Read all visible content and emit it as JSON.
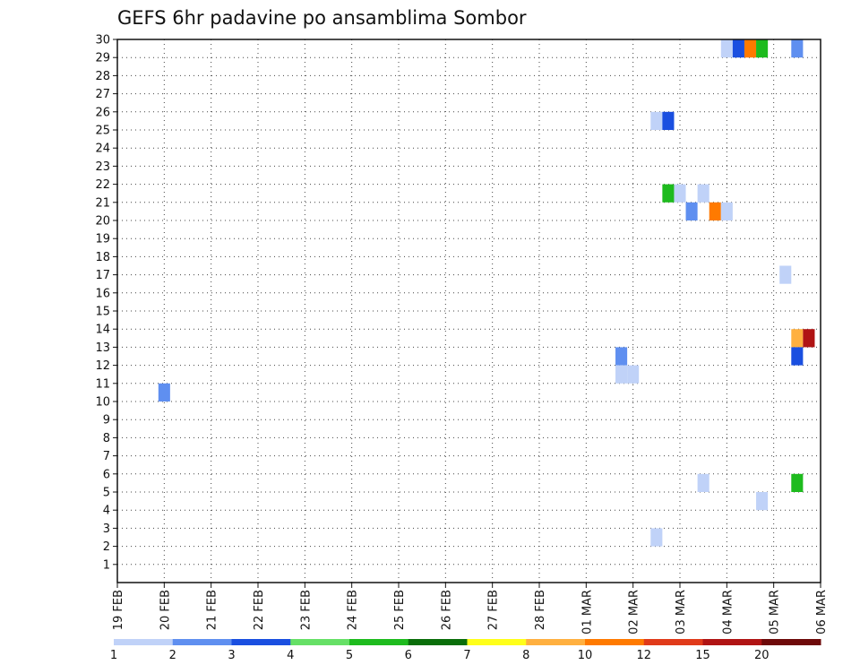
{
  "chart_data": {
    "type": "heatmap",
    "title": "GEFS 6hr padavine po ansamblima Sombor",
    "xlabel": "",
    "ylabel": "",
    "x_tick_labels": [
      "19 FEB",
      "20 FEB",
      "21 FEB",
      "22 FEB",
      "23 FEB",
      "24 FEB",
      "25 FEB",
      "26 FEB",
      "27 FEB",
      "28 FEB",
      "01 MAR",
      "02 MAR",
      "03 MAR",
      "04 MAR",
      "05 MAR",
      "06 MAR"
    ],
    "xlim_days": [
      0,
      15
    ],
    "ylim": [
      0,
      30
    ],
    "y_ticks": [
      1,
      2,
      3,
      4,
      5,
      6,
      7,
      8,
      9,
      10,
      11,
      12,
      13,
      14,
      15,
      16,
      17,
      18,
      19,
      20,
      21,
      22,
      23,
      24,
      25,
      26,
      27,
      28,
      29,
      30
    ],
    "grid": true,
    "colorbar": {
      "levels": [
        1,
        2,
        3,
        4,
        5,
        6,
        7,
        8,
        10,
        12,
        15,
        20
      ],
      "colors": [
        "#c0d2f8",
        "#5f8ff0",
        "#1a4fe0",
        "#66e066",
        "#1ebb1e",
        "#0a6e0a",
        "#ffff1a",
        "#ffb040",
        "#ff7a00",
        "#e03a1a",
        "#b01414",
        "#6e0a0a"
      ]
    },
    "cells": [
      {
        "day": 1.0,
        "member": 10.5,
        "level": 2
      },
      {
        "day": 10.75,
        "member": 12.5,
        "level": 2
      },
      {
        "day": 10.75,
        "member": 11.5,
        "level": 1
      },
      {
        "day": 11.0,
        "member": 11.5,
        "level": 1
      },
      {
        "day": 11.5,
        "member": 25.5,
        "level": 1
      },
      {
        "day": 11.75,
        "member": 25.5,
        "level": 3
      },
      {
        "day": 11.75,
        "member": 21.5,
        "level": 5
      },
      {
        "day": 12.0,
        "member": 21.5,
        "level": 1
      },
      {
        "day": 12.25,
        "member": 20.5,
        "level": 2
      },
      {
        "day": 12.5,
        "member": 21.5,
        "level": 1
      },
      {
        "day": 12.75,
        "member": 20.5,
        "level": 10
      },
      {
        "day": 13.0,
        "member": 20.5,
        "level": 1
      },
      {
        "day": 11.5,
        "member": 2.5,
        "level": 1
      },
      {
        "day": 12.5,
        "member": 5.5,
        "level": 1
      },
      {
        "day": 13.0,
        "member": 29.5,
        "level": 1
      },
      {
        "day": 13.25,
        "member": 29.5,
        "level": 3
      },
      {
        "day": 13.5,
        "member": 29.5,
        "level": 10
      },
      {
        "day": 13.75,
        "member": 29.5,
        "level": 5
      },
      {
        "day": 13.75,
        "member": 4.5,
        "level": 1
      },
      {
        "day": 14.25,
        "member": 17.0,
        "level": 1
      },
      {
        "day": 14.5,
        "member": 29.5,
        "level": 2
      },
      {
        "day": 14.5,
        "member": 13.5,
        "level": 8
      },
      {
        "day": 14.75,
        "member": 13.5,
        "level": 15
      },
      {
        "day": 14.5,
        "member": 12.5,
        "level": 3
      },
      {
        "day": 14.5,
        "member": 5.5,
        "level": 5
      }
    ]
  }
}
